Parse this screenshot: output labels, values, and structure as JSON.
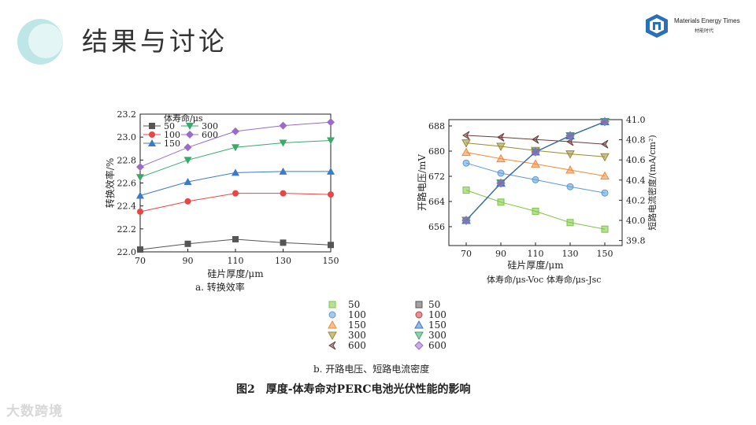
{
  "slide": {
    "title": "结果与讨论",
    "logo_name": "Materials Energy Times",
    "logo_sub": "材能时代",
    "watermark": "大数跨境",
    "figure_caption": "图2　厚度-体寿命对PERC电池光伏性能的影响",
    "caption_a": "a. 转换效率",
    "caption_b": "b. 开路电压、短路电流密度"
  },
  "colors": {
    "50": "#555555",
    "100": "#e84545",
    "150": "#3a7bc8",
    "300": "#3aa86b",
    "600": "#9b6bc8",
    "voc50": "#7cc443",
    "voc100": "#5b9bd5",
    "voc150": "#f08a3a",
    "voc300": "#9a8a30",
    "voc600": "#6b3a3a",
    "jsc": "#3f6fa5"
  },
  "chart_data": [
    {
      "type": "line",
      "title": "a. 转换效率",
      "xlabel": "硅片厚度/μm",
      "ylabel": "转换效率/%",
      "legend_title": "体寿命/μs",
      "x": [
        70,
        90,
        110,
        130,
        150
      ],
      "xticks": [
        "70",
        "90",
        "110",
        "130",
        "150"
      ],
      "ylim": [
        22.0,
        23.2
      ],
      "yticks": [
        "22.0",
        "22.2",
        "22.4",
        "22.6",
        "22.8",
        "23.0",
        "23.2"
      ],
      "series": [
        {
          "name": "50",
          "marker": "square",
          "color": "#555555",
          "values": [
            22.02,
            22.07,
            22.11,
            22.08,
            22.06
          ]
        },
        {
          "name": "100",
          "marker": "circle",
          "color": "#e84545",
          "values": [
            22.35,
            22.44,
            22.51,
            22.51,
            22.5
          ]
        },
        {
          "name": "150",
          "marker": "triangle-up",
          "color": "#3a7bc8",
          "values": [
            22.49,
            22.61,
            22.69,
            22.7,
            22.7
          ]
        },
        {
          "name": "300",
          "marker": "triangle-down",
          "color": "#3aa86b",
          "values": [
            22.65,
            22.8,
            22.91,
            22.95,
            22.97
          ]
        },
        {
          "name": "600",
          "marker": "diamond",
          "color": "#9b6bc8",
          "values": [
            22.74,
            22.91,
            23.05,
            23.1,
            23.13
          ]
        }
      ]
    },
    {
      "type": "line",
      "title": "b. 开路电压、短路电流密度",
      "xlabel": "硅片厚度/μm",
      "ylabel_left": "开路电压/mV",
      "ylabel_right": "短路电流密度/(mA/cm²)",
      "x": [
        70,
        90,
        110,
        130,
        150
      ],
      "xticks": [
        "70",
        "90",
        "110",
        "130",
        "150"
      ],
      "ylim_left": [
        650,
        690
      ],
      "yticks_left": [
        "656",
        "664",
        "672",
        "680",
        "688"
      ],
      "ylim_right": [
        39.75,
        41.0
      ],
      "yticks_right": [
        "39.8",
        "40.0",
        "40.2",
        "40.4",
        "40.6",
        "40.8",
        "41.0"
      ],
      "legend_voc_title": "体寿命/μs-Voc",
      "legend_jsc_title": "体寿命/μs-Jsc",
      "series_voc": [
        {
          "name": "50",
          "marker": "square",
          "color": "#7cc443",
          "values": [
            667.6,
            663.8,
            660.9,
            657.3,
            655.2
          ]
        },
        {
          "name": "100",
          "marker": "circle",
          "color": "#5b9bd5",
          "values": [
            676.2,
            673.0,
            670.9,
            668.7,
            666.7
          ]
        },
        {
          "name": "150",
          "marker": "triangle-up",
          "color": "#f08a3a",
          "values": [
            679.6,
            677.6,
            675.9,
            674.0,
            672.1
          ]
        },
        {
          "name": "300",
          "marker": "triangle-down",
          "color": "#9a8a30",
          "values": [
            682.6,
            681.5,
            680.2,
            679.1,
            678.2
          ]
        },
        {
          "name": "600",
          "marker": "arrow",
          "color": "#6b3a3a",
          "values": [
            685.0,
            684.4,
            683.7,
            683.0,
            682.2
          ]
        }
      ],
      "series_jsc": [
        {
          "name": "50",
          "marker": "square",
          "color": "#555555",
          "values": [
            40.0,
            40.37,
            40.68,
            40.84,
            40.98
          ]
        },
        {
          "name": "100",
          "marker": "circle",
          "color": "#c04040",
          "values": [
            40.0,
            40.37,
            40.68,
            40.84,
            40.98
          ]
        },
        {
          "name": "150",
          "marker": "triangle-up",
          "color": "#3a7bc8",
          "values": [
            40.0,
            40.37,
            40.68,
            40.84,
            40.98
          ]
        },
        {
          "name": "300",
          "marker": "triangle-down",
          "color": "#3aa86b",
          "values": [
            40.0,
            40.37,
            40.68,
            40.84,
            40.98
          ]
        },
        {
          "name": "600",
          "marker": "diamond",
          "color": "#9b6bc8",
          "values": [
            40.0,
            40.37,
            40.68,
            40.84,
            40.98
          ]
        }
      ]
    }
  ]
}
